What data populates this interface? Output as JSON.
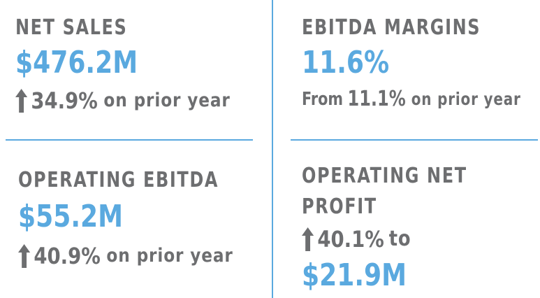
{
  "colors": {
    "accent": "#5aa9df",
    "text": "#6d6e70"
  },
  "net_sales": {
    "title": "NET SALES",
    "value": "$476.2M",
    "change": "34.9%",
    "change_suffix": "on prior year",
    "arrow_icon": "up-arrow-icon"
  },
  "ebitda_margins": {
    "title": "EBITDA MARGINS",
    "value": "11.6%",
    "from_label": "From",
    "from_value": "11.1%",
    "suffix": "on prior year"
  },
  "operating_ebitda": {
    "title": "OPERATING EBITDA",
    "value": "$55.2M",
    "change": "40.9%",
    "change_suffix": "on prior year",
    "arrow_icon": "up-arrow-icon"
  },
  "operating_net_profit": {
    "title_line1": "OPERATING NET",
    "title_line2": "PROFIT",
    "change": "40.1%",
    "change_suffix": "to",
    "value": "$21.9M",
    "arrow_icon": "up-arrow-icon"
  }
}
